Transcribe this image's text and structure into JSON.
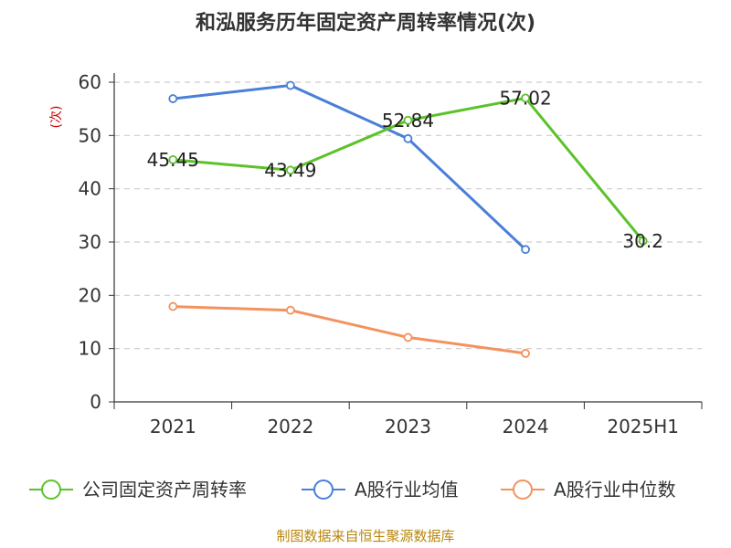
{
  "chart_data": {
    "type": "line",
    "title": "和泓服务历年固定资产周转率情况(次)",
    "ylabel": "(次)",
    "categories": [
      "2021",
      "2022",
      "2023",
      "2024",
      "2025H1"
    ],
    "y_ticks": [
      "0",
      "10",
      "20",
      "30",
      "40",
      "50",
      "60"
    ],
    "ylim": [
      0,
      60
    ],
    "grid": true,
    "legend_position": "bottom",
    "series": [
      {
        "name": "公司固定资产周转率",
        "color": "#5cc22a",
        "values": [
          45.45,
          43.49,
          52.84,
          57.02,
          30.2
        ],
        "labels": [
          "45.45",
          "43.49",
          "52.84",
          "57.02",
          "30.2"
        ]
      },
      {
        "name": "A股行业均值",
        "color": "#4a7fd8",
        "values": [
          56.9,
          59.4,
          49.4,
          28.6,
          null
        ]
      },
      {
        "name": "A股行业中位数",
        "color": "#f4925e",
        "values": [
          17.9,
          17.2,
          12.1,
          9.1,
          null
        ]
      }
    ]
  },
  "source": "制图数据来自恒生聚源数据库"
}
